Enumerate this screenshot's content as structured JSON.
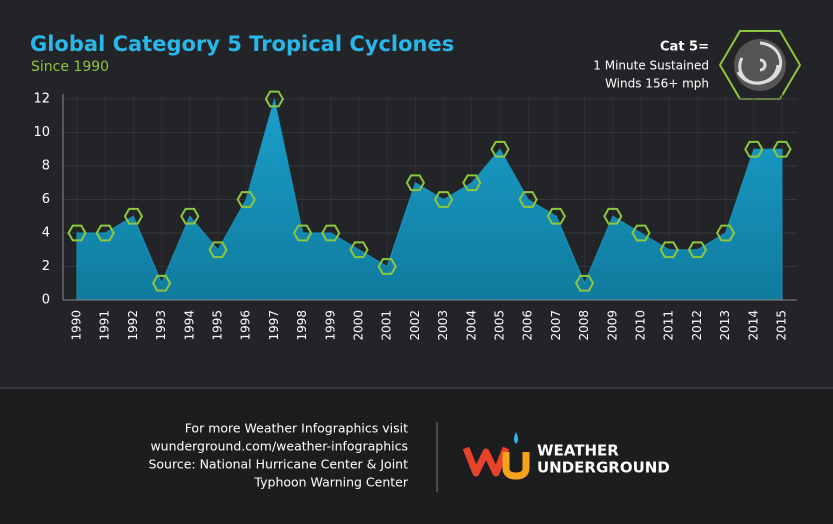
{
  "chart_data": {
    "type": "area",
    "title": "Global Category 5 Tropical Cyclones",
    "subtitle": "Since 1990",
    "categories": [
      "1990",
      "1991",
      "1992",
      "1993",
      "1994",
      "1995",
      "1996",
      "1997",
      "1998",
      "1999",
      "2000",
      "2001",
      "2002",
      "2003",
      "2004",
      "2005",
      "2006",
      "2007",
      "2008",
      "2009",
      "2010",
      "2011",
      "2012",
      "2013",
      "2014",
      "2015"
    ],
    "values": [
      4,
      4,
      5,
      1,
      5,
      3,
      6,
      12,
      4,
      4,
      3,
      2,
      7,
      6,
      7,
      9,
      6,
      5,
      1,
      5,
      4,
      3,
      3,
      4,
      9,
      9
    ],
    "color": "#1792b8",
    "marker_color": "#8dc63f",
    "ylim": [
      0,
      12
    ],
    "yticks": [
      0,
      2,
      4,
      6,
      8,
      10,
      12
    ],
    "grid": true,
    "note": [
      "Cat 5=",
      "1 Minute Sustained",
      "Winds 156+ mph"
    ]
  },
  "footer": {
    "lines": [
      "For more Weather Infographics visit",
      "wunderground.com/weather-infographics",
      "Source: National Hurricane Center & Joint",
      "Typhoon Warning Center"
    ],
    "logo": [
      "WEATHER",
      "UNDERGROUND"
    ]
  }
}
